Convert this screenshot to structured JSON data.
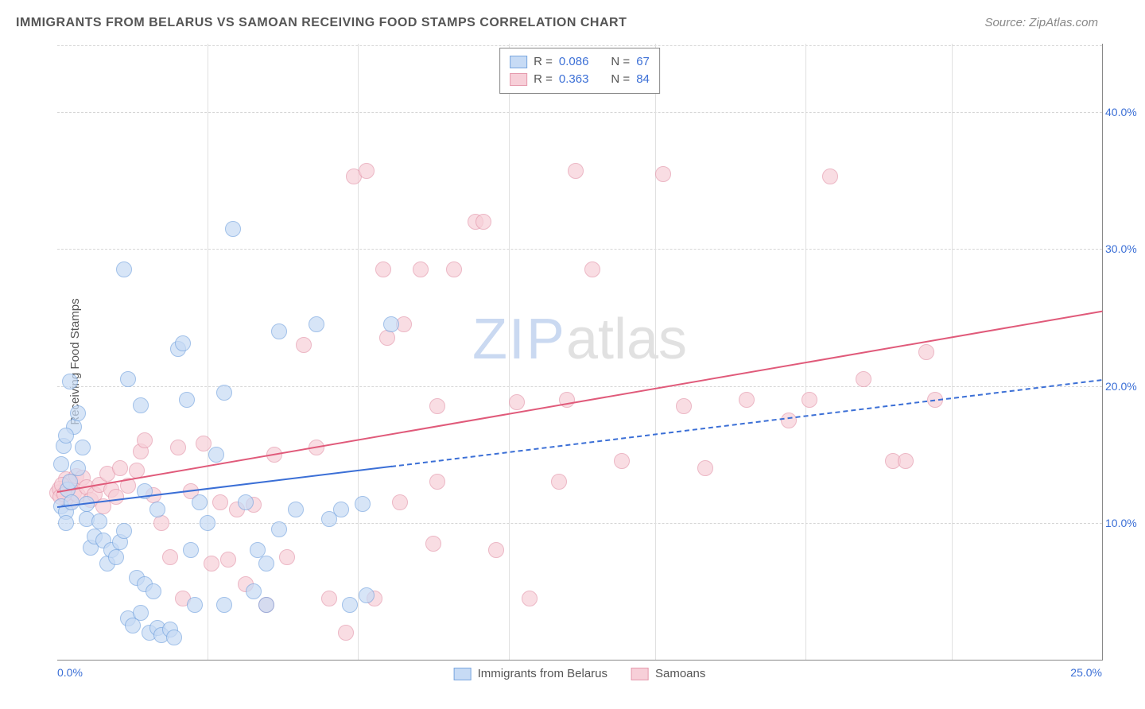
{
  "title": "IMMIGRANTS FROM BELARUS VS SAMOAN RECEIVING FOOD STAMPS CORRELATION CHART",
  "source": "Source: ZipAtlas.com",
  "y_axis_label": "Receiving Food Stamps",
  "watermark_zip": "ZIP",
  "watermark_atlas": "atlas",
  "chart": {
    "type": "scatter-with-regression",
    "xlim": [
      0,
      25
    ],
    "ylim": [
      0,
      45
    ],
    "y_ticks": [
      10,
      20,
      30,
      40
    ],
    "y_tick_labels": [
      "10.0%",
      "20.0%",
      "30.0%",
      "40.0%"
    ],
    "x_ticks": [
      0,
      25
    ],
    "x_tick_labels": [
      "0.0%",
      "25.0%"
    ],
    "x_minor_gridlines": [
      3.6,
      7.2,
      10.8,
      14.3,
      17.9,
      21.4
    ],
    "grid_color": "#d6d6d6",
    "background_color": "#ffffff",
    "axis_color": "#888888",
    "tick_color": "#3b6fd6",
    "point_radius": 9,
    "point_opacity": 0.7
  },
  "series": [
    {
      "name": "Immigrants from Belarus",
      "fill": "#c7dbf5",
      "stroke": "#7aa7e0",
      "line_color": "#3b6fd6",
      "R": "0.086",
      "N": "67",
      "reg_start": [
        0,
        11.2
      ],
      "reg_end": [
        25,
        20.5
      ],
      "solid_until_x": 8.0,
      "points": [
        [
          0.1,
          11.2
        ],
        [
          0.2,
          10.8
        ],
        [
          0.1,
          14.3
        ],
        [
          0.15,
          15.6
        ],
        [
          0.2,
          10.0
        ],
        [
          0.25,
          12.4
        ],
        [
          0.3,
          13.0
        ],
        [
          0.35,
          11.5
        ],
        [
          0.4,
          17.0
        ],
        [
          0.3,
          20.3
        ],
        [
          0.2,
          16.4
        ],
        [
          0.5,
          14.0
        ],
        [
          0.6,
          15.5
        ],
        [
          0.5,
          18.0
        ],
        [
          0.7,
          10.3
        ],
        [
          0.8,
          8.2
        ],
        [
          0.9,
          9.0
        ],
        [
          0.7,
          11.4
        ],
        [
          1.0,
          10.1
        ],
        [
          1.1,
          8.7
        ],
        [
          1.2,
          7.0
        ],
        [
          1.3,
          8.0
        ],
        [
          1.4,
          7.5
        ],
        [
          1.5,
          8.6
        ],
        [
          1.6,
          9.4
        ],
        [
          1.7,
          3.0
        ],
        [
          1.8,
          2.5
        ],
        [
          1.9,
          6.0
        ],
        [
          2.0,
          3.4
        ],
        [
          2.1,
          5.5
        ],
        [
          2.2,
          2.0
        ],
        [
          2.3,
          5.0
        ],
        [
          2.4,
          2.3
        ],
        [
          2.5,
          1.8
        ],
        [
          2.7,
          2.2
        ],
        [
          2.8,
          1.6
        ],
        [
          1.7,
          20.5
        ],
        [
          1.6,
          28.5
        ],
        [
          2.0,
          18.6
        ],
        [
          2.1,
          12.3
        ],
        [
          2.4,
          11.0
        ],
        [
          2.9,
          22.7
        ],
        [
          3.0,
          23.1
        ],
        [
          3.1,
          19.0
        ],
        [
          3.2,
          8.0
        ],
        [
          3.3,
          4.0
        ],
        [
          3.4,
          11.5
        ],
        [
          3.6,
          10.0
        ],
        [
          3.8,
          15.0
        ],
        [
          4.0,
          19.5
        ],
        [
          4.0,
          4.0
        ],
        [
          4.2,
          31.5
        ],
        [
          4.5,
          11.5
        ],
        [
          4.7,
          5.0
        ],
        [
          4.8,
          8.0
        ],
        [
          5.0,
          4.0
        ],
        [
          5.0,
          7.0
        ],
        [
          5.3,
          9.5
        ],
        [
          5.3,
          24.0
        ],
        [
          5.7,
          11.0
        ],
        [
          6.2,
          24.5
        ],
        [
          6.5,
          10.3
        ],
        [
          6.8,
          11.0
        ],
        [
          7.0,
          4.0
        ],
        [
          7.4,
          4.7
        ],
        [
          7.3,
          11.4
        ],
        [
          8.0,
          24.5
        ]
      ]
    },
    {
      "name": "Samoans",
      "fill": "#f7cfd8",
      "stroke": "#e59aad",
      "line_color": "#e05a7a",
      "R": "0.363",
      "N": "84",
      "reg_start": [
        0,
        12.3
      ],
      "reg_end": [
        25,
        25.5
      ],
      "solid_until_x": 25,
      "points": [
        [
          0.1,
          12.3
        ],
        [
          0.15,
          12.0
        ],
        [
          0.2,
          13.2
        ],
        [
          0.25,
          12.5
        ],
        [
          0.3,
          11.5
        ],
        [
          0.2,
          11.8
        ],
        [
          0.3,
          12.7
        ],
        [
          0.35,
          13.0
        ],
        [
          0.4,
          12.2
        ],
        [
          0.45,
          13.4
        ],
        [
          0.5,
          12.0
        ],
        [
          0.6,
          13.3
        ],
        [
          0.7,
          12.6
        ],
        [
          0.8,
          11.7
        ],
        [
          0.9,
          12.1
        ],
        [
          1.0,
          12.8
        ],
        [
          1.1,
          11.2
        ],
        [
          1.2,
          13.6
        ],
        [
          1.3,
          12.4
        ],
        [
          1.4,
          11.9
        ],
        [
          1.5,
          14.0
        ],
        [
          1.7,
          12.7
        ],
        [
          1.9,
          13.8
        ],
        [
          2.0,
          15.2
        ],
        [
          2.1,
          16.0
        ],
        [
          2.3,
          12.0
        ],
        [
          2.5,
          10.0
        ],
        [
          2.7,
          7.5
        ],
        [
          2.9,
          15.5
        ],
        [
          3.0,
          4.5
        ],
        [
          3.2,
          12.3
        ],
        [
          3.5,
          15.8
        ],
        [
          3.7,
          7.0
        ],
        [
          3.9,
          11.5
        ],
        [
          4.1,
          7.3
        ],
        [
          4.3,
          11.0
        ],
        [
          4.5,
          5.5
        ],
        [
          4.7,
          11.3
        ],
        [
          5.0,
          4.0
        ],
        [
          5.2,
          15.0
        ],
        [
          5.5,
          7.5
        ],
        [
          5.9,
          23.0
        ],
        [
          6.2,
          15.5
        ],
        [
          6.5,
          4.5
        ],
        [
          6.9,
          2.0
        ],
        [
          7.1,
          35.3
        ],
        [
          7.4,
          35.7
        ],
        [
          7.6,
          4.5
        ],
        [
          7.8,
          28.5
        ],
        [
          7.9,
          23.5
        ],
        [
          8.2,
          11.5
        ],
        [
          8.3,
          24.5
        ],
        [
          8.7,
          28.5
        ],
        [
          9.0,
          8.5
        ],
        [
          9.1,
          13.0
        ],
        [
          9.1,
          18.5
        ],
        [
          9.5,
          28.5
        ],
        [
          10.0,
          32.0
        ],
        [
          10.2,
          32.0
        ],
        [
          10.5,
          8.0
        ],
        [
          11.0,
          18.8
        ],
        [
          11.3,
          4.5
        ],
        [
          12.0,
          13.0
        ],
        [
          12.2,
          19.0
        ],
        [
          12.4,
          35.7
        ],
        [
          12.8,
          28.5
        ],
        [
          13.5,
          14.5
        ],
        [
          14.5,
          35.5
        ],
        [
          15.0,
          18.5
        ],
        [
          15.5,
          14.0
        ],
        [
          16.5,
          19.0
        ],
        [
          17.5,
          17.5
        ],
        [
          18.0,
          19.0
        ],
        [
          18.5,
          35.3
        ],
        [
          19.3,
          20.5
        ],
        [
          20.0,
          14.5
        ],
        [
          20.3,
          14.5
        ],
        [
          20.8,
          22.5
        ],
        [
          21.0,
          19.0
        ],
        [
          0.0,
          12.2
        ],
        [
          0.05,
          12.5
        ],
        [
          0.08,
          11.9
        ],
        [
          0.12,
          12.8
        ],
        [
          0.18,
          12.1
        ]
      ]
    }
  ],
  "legend_top_rows": [
    {
      "swatch_fill": "#c7dbf5",
      "swatch_stroke": "#7aa7e0",
      "R_label": "R =",
      "R": "0.086",
      "N_label": "N =",
      "N": "67"
    },
    {
      "swatch_fill": "#f7cfd8",
      "swatch_stroke": "#e59aad",
      "R_label": "R =",
      "R": "0.363",
      "N_label": "N =",
      "N": "84"
    }
  ],
  "legend_bottom": [
    {
      "swatch_fill": "#c7dbf5",
      "swatch_stroke": "#7aa7e0",
      "label": "Immigrants from Belarus"
    },
    {
      "swatch_fill": "#f7cfd8",
      "swatch_stroke": "#e59aad",
      "label": "Samoans"
    }
  ]
}
